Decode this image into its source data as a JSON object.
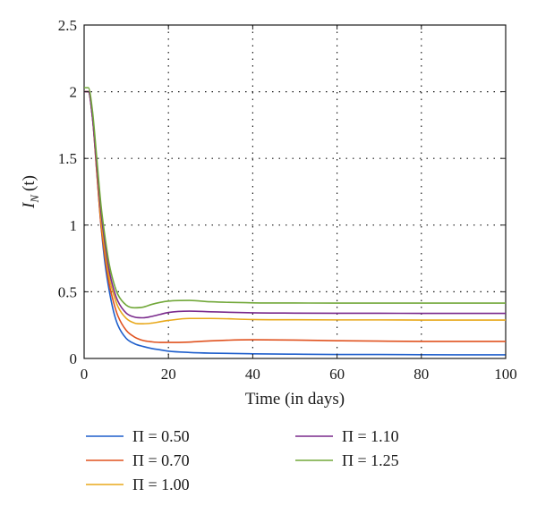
{
  "chart_data": {
    "type": "line",
    "xlabel": "Time (in days)",
    "ylabel_main": "I",
    "ylabel_sub": "N",
    "ylabel_tail": "(t)",
    "xlim": [
      0,
      100
    ],
    "ylim": [
      0,
      2.5
    ],
    "xticks": [
      0,
      20,
      40,
      60,
      80,
      100
    ],
    "yticks": [
      0,
      0.5,
      1,
      1.5,
      2,
      2.5
    ],
    "xtick_labels": [
      "0",
      "20",
      "40",
      "60",
      "80",
      "100"
    ],
    "ytick_labels": [
      "0",
      "0.5",
      "1",
      "1.5",
      "2",
      "2.5"
    ],
    "grid": "dotted",
    "legend_position": "bottom",
    "series": [
      {
        "name": "Π = 0.50",
        "color": "#1f5fcc",
        "x": [
          0,
          1,
          2,
          3,
          4,
          5,
          6,
          7,
          8,
          10,
          12,
          14,
          16,
          18,
          20,
          25,
          30,
          40,
          50,
          60,
          70,
          80,
          90,
          100
        ],
        "y": [
          2.0,
          2.0,
          1.8,
          1.4,
          1.0,
          0.7,
          0.5,
          0.35,
          0.25,
          0.15,
          0.11,
          0.09,
          0.075,
          0.065,
          0.055,
          0.045,
          0.04,
          0.035,
          0.032,
          0.03,
          0.03,
          0.028,
          0.027,
          0.027
        ]
      },
      {
        "name": "Π = 0.70",
        "color": "#e0521f",
        "x": [
          0,
          1,
          2,
          3,
          4,
          5,
          6,
          7,
          8,
          10,
          12,
          14,
          16,
          18,
          20,
          25,
          30,
          40,
          50,
          60,
          70,
          80,
          90,
          100
        ],
        "y": [
          2.0,
          2.0,
          1.8,
          1.4,
          1.0,
          0.75,
          0.55,
          0.42,
          0.32,
          0.21,
          0.16,
          0.135,
          0.125,
          0.12,
          0.12,
          0.123,
          0.132,
          0.14,
          0.138,
          0.133,
          0.13,
          0.128,
          0.128,
          0.128
        ]
      },
      {
        "name": "Π = 1.00",
        "color": "#e8a81a",
        "x": [
          0,
          1,
          2,
          3,
          4,
          5,
          6,
          7,
          8,
          10,
          12,
          14,
          16,
          18,
          20,
          25,
          30,
          40,
          50,
          60,
          70,
          80,
          90,
          100
        ],
        "y": [
          2.0,
          2.0,
          1.8,
          1.45,
          1.05,
          0.8,
          0.6,
          0.48,
          0.39,
          0.3,
          0.265,
          0.26,
          0.265,
          0.275,
          0.285,
          0.3,
          0.3,
          0.292,
          0.29,
          0.289,
          0.289,
          0.288,
          0.288,
          0.288
        ]
      },
      {
        "name": "Π = 1.10",
        "color": "#7a2a8c",
        "x": [
          0,
          1,
          2,
          3,
          4,
          5,
          6,
          7,
          8,
          10,
          12,
          14,
          16,
          18,
          20,
          25,
          30,
          40,
          50,
          60,
          70,
          80,
          90,
          100
        ],
        "y": [
          2.0,
          2.0,
          1.8,
          1.45,
          1.1,
          0.85,
          0.65,
          0.52,
          0.43,
          0.34,
          0.31,
          0.305,
          0.315,
          0.33,
          0.345,
          0.355,
          0.35,
          0.342,
          0.34,
          0.339,
          0.339,
          0.338,
          0.338,
          0.338
        ]
      },
      {
        "name": "Π = 1.25",
        "color": "#72a83a",
        "x": [
          0,
          1,
          2,
          3,
          4,
          5,
          6,
          7,
          8,
          10,
          12,
          14,
          16,
          18,
          20,
          25,
          30,
          40,
          50,
          60,
          70,
          80,
          90,
          100
        ],
        "y": [
          2.03,
          2.03,
          1.85,
          1.5,
          1.15,
          0.9,
          0.7,
          0.57,
          0.48,
          0.4,
          0.38,
          0.385,
          0.405,
          0.42,
          0.43,
          0.435,
          0.425,
          0.417,
          0.416,
          0.415,
          0.415,
          0.415,
          0.415,
          0.415
        ]
      }
    ]
  }
}
